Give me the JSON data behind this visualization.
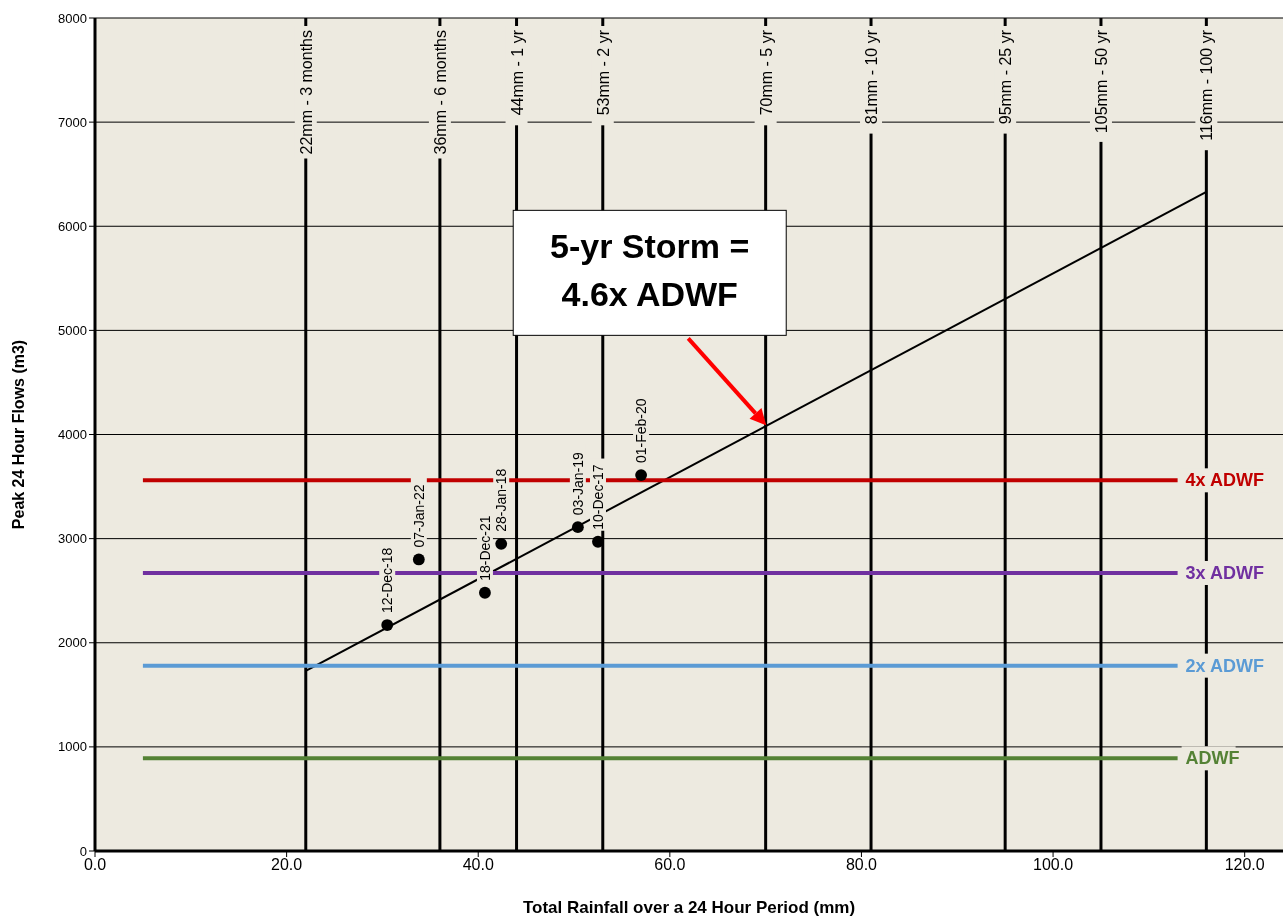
{
  "chart_data": {
    "type": "scatter",
    "xlabel": "Total Rainfall over a 24 Hour Period (mm)",
    "ylabel": "Peak 24 Hour Flows (m3)",
    "xlim": [
      0,
      124
    ],
    "ylim": [
      0,
      8000
    ],
    "xticks": [
      {
        "value": 0,
        "label": "0.0"
      },
      {
        "value": 20,
        "label": "20.0"
      },
      {
        "value": 40,
        "label": "40.0"
      },
      {
        "value": 60,
        "label": "60.0"
      },
      {
        "value": 80,
        "label": "80.0"
      },
      {
        "value": 100,
        "label": "100.0"
      },
      {
        "value": 120,
        "label": "120.0"
      }
    ],
    "yticks": [
      0,
      1000,
      2000,
      3000,
      4000,
      5000,
      6000,
      7000,
      8000
    ],
    "grid": "y",
    "series": [
      {
        "color": "#000000",
        "marker": "circle",
        "x": [
          30.5,
          33.8,
          40.7,
          42.4,
          50.4,
          52.5,
          57.0
        ],
        "values": [
          2170,
          2800,
          2480,
          2950,
          3110,
          2970,
          3610
        ]
      },
      {
        "type": "line",
        "color": "#000000",
        "x": [
          22,
          116
        ],
        "values": [
          1730,
          6330
        ]
      },
      {
        "type": "line",
        "name": "4x ADWF",
        "color": "#c00000",
        "x": [
          5,
          113
        ],
        "values": [
          3560,
          3560
        ]
      },
      {
        "type": "line",
        "name": "3x ADWF",
        "color": "#7030a0",
        "x": [
          5,
          113
        ],
        "values": [
          2670,
          2670
        ]
      },
      {
        "type": "line",
        "name": "2x ADWF",
        "color": "#5b9bd5",
        "x": [
          5,
          113
        ],
        "values": [
          1780,
          1780
        ]
      },
      {
        "type": "line",
        "name": "ADWF",
        "color": "#548235",
        "x": [
          5,
          113
        ],
        "values": [
          890,
          890
        ]
      }
    ],
    "ref_lines": [
      {
        "axis": "x",
        "value": 22,
        "label": "22mm - 3 months",
        "color": "#000000"
      },
      {
        "axis": "x",
        "value": 36,
        "label": "36mm - 6 months",
        "color": "#000000"
      },
      {
        "axis": "x",
        "value": 44,
        "label": "44mm - 1 yr",
        "color": "#000000"
      },
      {
        "axis": "x",
        "value": 53,
        "label": "53mm - 2 yr",
        "color": "#000000"
      },
      {
        "axis": "x",
        "value": 70,
        "label": "70mm - 5 yr",
        "color": "#000000"
      },
      {
        "axis": "x",
        "value": 81,
        "label": "81mm - 10 yr",
        "color": "#000000"
      },
      {
        "axis": "x",
        "value": 95,
        "label": "95mm - 25 yr",
        "color": "#000000"
      },
      {
        "axis": "x",
        "value": 105,
        "label": "105mm - 50 yr",
        "color": "#000000"
      },
      {
        "axis": "x",
        "value": 116,
        "label": "116mm - 100 yr",
        "color": "#000000"
      }
    ],
    "annotations": [
      {
        "text": "12-Dec-18",
        "x": 30.5,
        "y": 2170
      },
      {
        "text": "07-Jan-22",
        "x": 33.8,
        "y": 2800
      },
      {
        "text": "18-Dec-21",
        "x": 40.7,
        "y": 2480
      },
      {
        "text": "28-Jan-18",
        "x": 42.4,
        "y": 2950
      },
      {
        "text": "03-Jan-19",
        "x": 50.4,
        "y": 3110
      },
      {
        "text": "10-Dec-17",
        "x": 52.5,
        "y": 2970
      },
      {
        "text": "01-Feb-20",
        "x": 57.0,
        "y": 3610
      },
      "5-yr Storm = 4.6x ADWF"
    ]
  }
}
